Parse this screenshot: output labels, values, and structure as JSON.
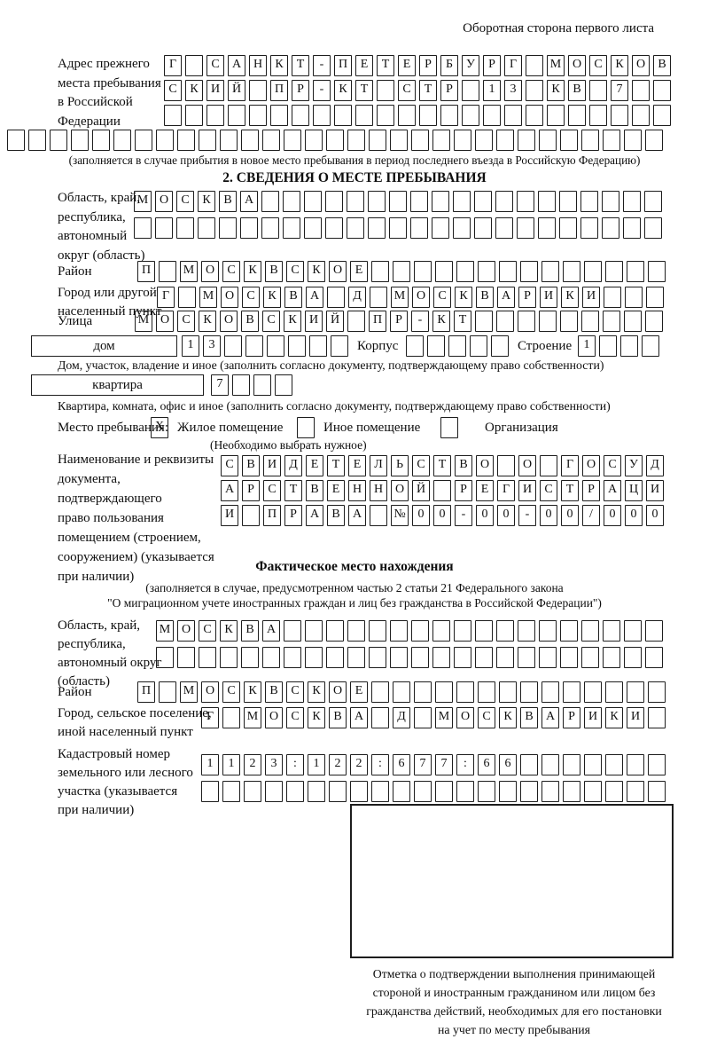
{
  "colors": {
    "ink": "#1d1d1d",
    "paper": "#ffffff"
  },
  "header": {
    "note": "Оборотная сторона первого листа"
  },
  "prev_address": {
    "label_lines": [
      "Адрес прежнего",
      "места пребывания",
      "в Российской",
      "Федерации"
    ],
    "row1": "Г САНКТ-ПЕТЕРБУРГ МОСКОВ",
    "row2": "СКИЙ ПР-КТ СТР 13 КВ 7",
    "row3": "",
    "row4": "",
    "caption": "(заполняется в случае прибытия в новое место пребывания в период последнего въезда в Российскую Федерацию)"
  },
  "section2": {
    "title": "2. СВЕДЕНИЯ О МЕСТЕ ПРЕБЫВАНИЯ",
    "region": {
      "label_lines": [
        "Область, край,",
        "республика,",
        "автономный",
        "округ (область)"
      ],
      "row1": "МОСКВА",
      "row2": ""
    },
    "district": {
      "label": "Район",
      "value": "П МОСКВСКОЕ"
    },
    "city": {
      "label_lines": [
        "Город или другой",
        "населенный пункт"
      ],
      "value": "Г МОСКВА Д МОСКВАРИКИ"
    },
    "street": {
      "label": "Улица",
      "value": "МОСКОВСКИЙ ПР-КТ"
    },
    "house": {
      "box_label": "дом",
      "value": "13",
      "korpus_label": "Корпус",
      "korpus_value": "",
      "stroenie_label": "Строение",
      "stroenie_value": "1"
    },
    "house_caption": "Дом, участок, владение и иное (заполнить согласно документу, подтверждающему право собственности)",
    "apartment": {
      "box_label": "квартира",
      "value": "7"
    },
    "apartment_caption": "Квартира, комната, офис и иное (заполнить согласно документу, подтверждающему право собственности)",
    "stay_type": {
      "label": "Место пребывания:",
      "residential_mark": "X",
      "residential_label": "Жилое помещение",
      "other_mark": "",
      "other_label": "Иное помещение",
      "organization_mark": "",
      "organization_label": "Организация",
      "note": "(Необходимо выбрать нужное)"
    },
    "document": {
      "label_lines": [
        "Наименование и реквизиты",
        "документа, подтверждающего",
        "право пользования",
        "помещением (строением,",
        "сооружением) (указывается",
        "при наличии)"
      ],
      "row1": "СВИДЕТЕЛЬСТВО О ГОСУД",
      "row2": "АРСТВЕННОЙ РЕГИСТРАЦИ",
      "row3": "И ПРАВА №00-00-00/000"
    }
  },
  "actual_location": {
    "title": "Фактическое место нахождения",
    "note_lines": [
      "(заполняется в случае, предусмотренном частью 2 статьи 21 Федерального закона",
      "\"О миграционном учете иностранных граждан и лиц без гражданства в Российской Федерации\")"
    ],
    "region": {
      "label_lines": [
        "Область, край,",
        "республика,",
        "автономный округ",
        "(область)"
      ],
      "row1": "МОСКВА",
      "row2": ""
    },
    "district": {
      "label": "Район",
      "value": "П МОСКВСКОЕ"
    },
    "city": {
      "label_lines": [
        "Город, сельское поселение,",
        "иной населенный пункт"
      ],
      "value": "Г МОСКВА Д МОСКВАРИКИ"
    },
    "cadastral": {
      "label_lines": [
        "Кадастровый номер",
        "земельного или лесного",
        "участка (указывается",
        "при наличии)"
      ],
      "row1": "1123:122:677:66",
      "row2": ""
    }
  },
  "mark_area": {
    "caption_lines": [
      "Отметка о подтверждении выполнения принимающей",
      "стороной и иностранным гражданином или лицом без",
      "гражданства действий, необходимых для его постановки",
      "на учет по месту пребывания"
    ]
  }
}
